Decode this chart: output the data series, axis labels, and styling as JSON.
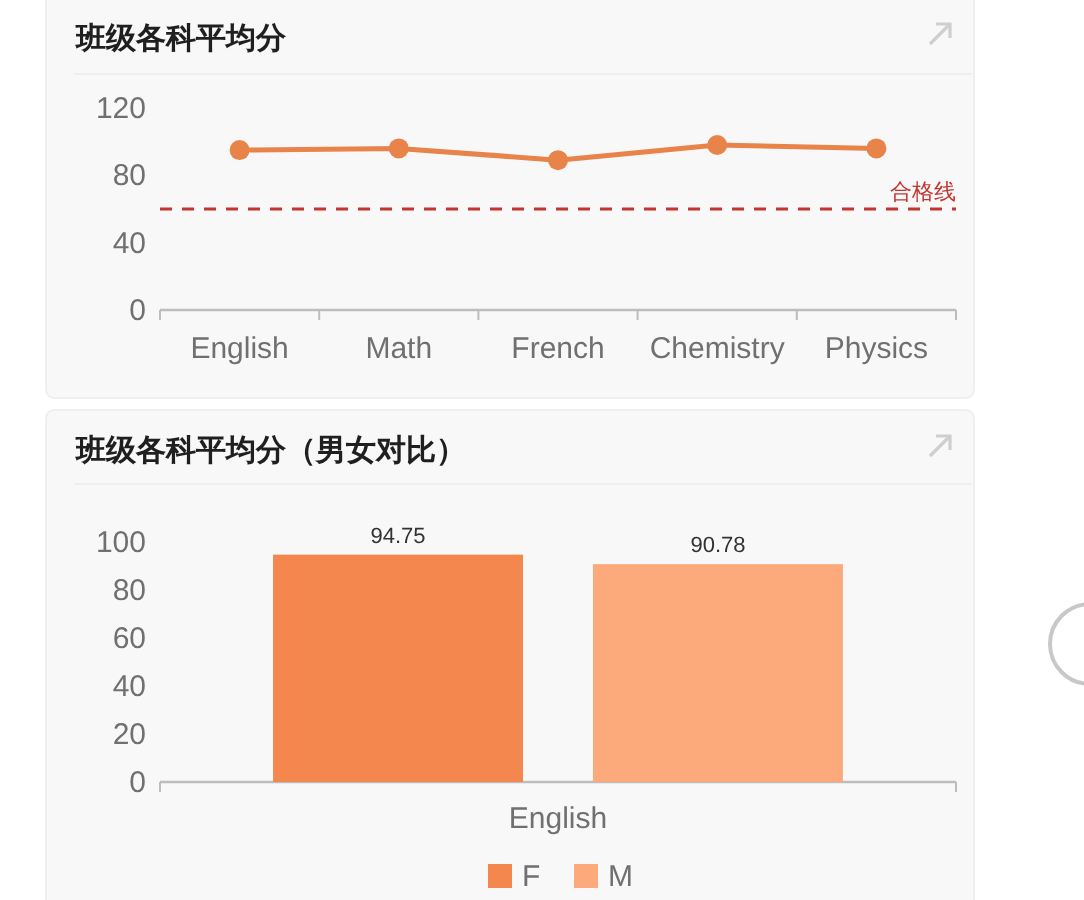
{
  "chart_data": [
    {
      "type": "line",
      "title": "班级各科平均分",
      "categories": [
        "English",
        "Math",
        "French",
        "Chemistry",
        "Physics"
      ],
      "values": [
        95,
        96,
        89,
        98,
        96
      ],
      "color": "#e8844a",
      "ylim": [
        0,
        120
      ],
      "yticks": [
        0,
        40,
        80,
        120
      ],
      "marker": "circle",
      "ref_lines": [
        {
          "axis": "y",
          "value": 60,
          "label": "合格线",
          "color": "#c23531",
          "line_style": "dashed"
        }
      ]
    },
    {
      "type": "bar",
      "title": "班级各科平均分（男女对比）",
      "categories": [
        "English"
      ],
      "series": [
        {
          "name": "F",
          "color": "#f4874e",
          "values": [
            94.75
          ]
        },
        {
          "name": "M",
          "color": "#fcaa7b",
          "values": [
            90.78
          ]
        }
      ],
      "ylim": [
        0,
        100
      ],
      "yticks": [
        0,
        20,
        40,
        60,
        80,
        100
      ],
      "data_labels": true,
      "legend": "bottom"
    }
  ]
}
